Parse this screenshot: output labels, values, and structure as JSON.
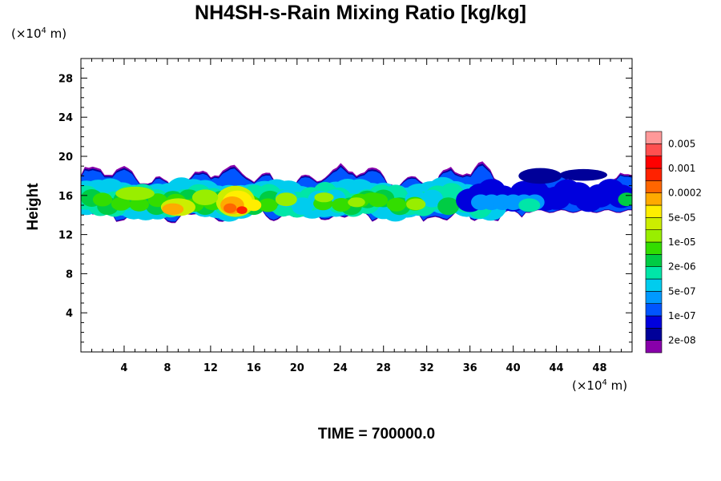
{
  "chart_data": {
    "type": "heatmap",
    "title": "NH4SH-s-Rain Mixing Ratio [kg/kg]",
    "xlabel": "",
    "ylabel": "Height",
    "x_unit_prefix": "(×10",
    "x_unit_exp": "4",
    "x_unit_suffix": " m)",
    "y_unit_prefix": "(×10",
    "y_unit_exp": "4",
    "y_unit_suffix": " m)",
    "xlim": [
      0,
      51
    ],
    "ylim": [
      0,
      30
    ],
    "x_ticks": [
      "4",
      "8",
      "12",
      "16",
      "20",
      "24",
      "28",
      "32",
      "36",
      "40",
      "44",
      "48"
    ],
    "y_ticks": [
      "4",
      "8",
      "12",
      "16",
      "20",
      "24",
      "28"
    ],
    "colorbar": {
      "colors": [
        "#8800aa",
        "#000099",
        "#0000dd",
        "#0055ff",
        "#0099ff",
        "#00ccee",
        "#00e6a8",
        "#00cc44",
        "#33dd00",
        "#99ee00",
        "#ccee00",
        "#ffee00",
        "#ffaa00",
        "#ff6600",
        "#ff2200",
        "#ff0000",
        "#ff5050",
        "#ff9999"
      ],
      "labels": [
        "2e-08",
        "1e-07",
        "5e-07",
        "2e-06",
        "1e-05",
        "5e-05",
        "0.0002",
        "0.001",
        "0.005"
      ]
    },
    "layer": {
      "base_height": 14.3,
      "top_height": 18.5,
      "region": "cloud layer between ~13 and ~19.5 (x10^4 m) across full domain",
      "max_value_location": "x≈14, y≈14.8",
      "notes": "orange/red maxima near x≈8-9 and x≈13-16; green/cyan mid-values 18-40; blue/purple values 38-51"
    },
    "time_label": "TIME = 700000.0"
  }
}
